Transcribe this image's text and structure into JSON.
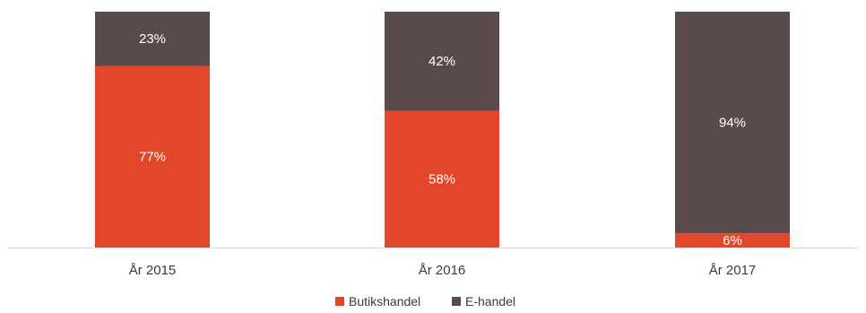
{
  "chart_data": {
    "type": "bar",
    "stacked": true,
    "categories": [
      "År 2015",
      "År 2016",
      "År 2017"
    ],
    "series": [
      {
        "name": "Butikshandel",
        "values": [
          77,
          58,
          6
        ],
        "labels": [
          "77%",
          "58%",
          "6%"
        ],
        "color": "#e2472a"
      },
      {
        "name": "E-handel",
        "values": [
          23,
          42,
          94
        ],
        "labels": [
          "23%",
          "42%",
          "94%"
        ],
        "color": "#5a4a4b"
      }
    ],
    "ylim": [
      0,
      100
    ],
    "grid": false,
    "legend_position": "bottom",
    "axis_color": "#d9d9d9"
  }
}
